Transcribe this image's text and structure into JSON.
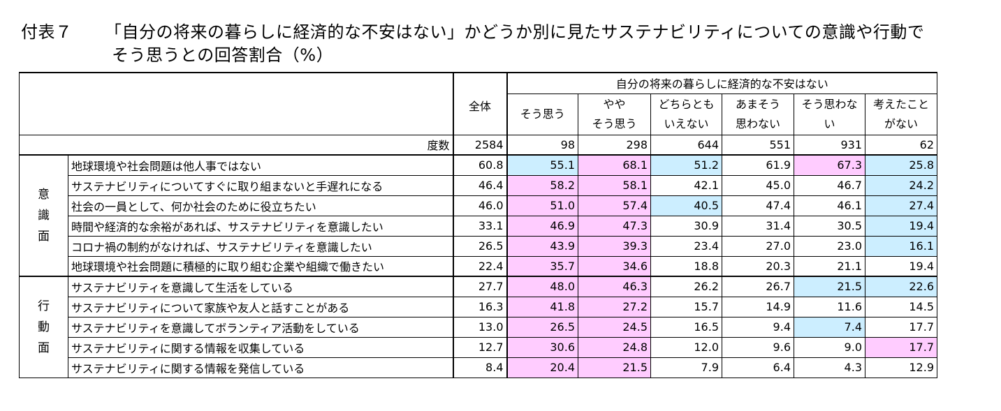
{
  "title": {
    "label": "付表７",
    "line1": "「自分の将来の暮らしに経済的な不安はない」かどうか別に見たサステナビリティについての意識や行動で",
    "line2": "そう思うとの回答割合（%）"
  },
  "header": {
    "total": "全体",
    "group": "自分の将来の暮らしに経済的な不安はない",
    "cols": [
      {
        "l1": "そう思う",
        "l2": ""
      },
      {
        "l1": "やや",
        "l2": "そう思う"
      },
      {
        "l1": "どちらとも",
        "l2": "いえない"
      },
      {
        "l1": "あまそう",
        "l2": "思わない"
      },
      {
        "l1": "そう思わな",
        "l2": "い"
      },
      {
        "l1": "考えたこと",
        "l2": "がない"
      }
    ]
  },
  "count_row": {
    "label": "度数",
    "total": "2584",
    "values": [
      "98",
      "298",
      "644",
      "551",
      "931",
      "62"
    ]
  },
  "sections": [
    {
      "label": [
        "意",
        "識",
        "面"
      ],
      "rows": [
        {
          "item": "地球環境や社会問題は他人事ではない",
          "total": "60.8",
          "values": [
            "55.1",
            "68.1",
            "51.2",
            "61.9",
            "67.3",
            "25.8"
          ],
          "hl": [
            "blue",
            "pink",
            "blue",
            "",
            "pink",
            "blue"
          ]
        },
        {
          "item": "サステナビリティについてすぐに取り組まないと手遅れになる",
          "total": "46.4",
          "values": [
            "58.2",
            "58.1",
            "42.1",
            "45.0",
            "46.7",
            "24.2"
          ],
          "hl": [
            "pink",
            "pink",
            "",
            "",
            "",
            "blue"
          ]
        },
        {
          "item": "社会の一員として、何か社会のために役立ちたい",
          "total": "46.0",
          "values": [
            "51.0",
            "57.4",
            "40.5",
            "47.4",
            "46.1",
            "27.4"
          ],
          "hl": [
            "pink",
            "pink",
            "blue",
            "",
            "",
            "blue"
          ]
        },
        {
          "item": "時間や経済的な余裕があれば、サステナビリティを意識したい",
          "total": "33.1",
          "values": [
            "46.9",
            "47.3",
            "30.9",
            "31.4",
            "30.5",
            "19.4"
          ],
          "hl": [
            "pink",
            "pink",
            "",
            "",
            "",
            "blue"
          ]
        },
        {
          "item": "コロナ禍の制約がなければ、サステナビリティを意識したい",
          "total": "26.5",
          "values": [
            "43.9",
            "39.3",
            "23.4",
            "27.0",
            "23.0",
            "16.1"
          ],
          "hl": [
            "pink",
            "pink",
            "",
            "",
            "",
            "blue"
          ]
        },
        {
          "item": "地球環境や社会問題に積極的に取り組む企業や組織で働きたい",
          "total": "22.4",
          "values": [
            "35.7",
            "34.6",
            "18.8",
            "20.3",
            "21.1",
            "19.4"
          ],
          "hl": [
            "pink",
            "pink",
            "",
            "",
            "",
            ""
          ]
        }
      ]
    },
    {
      "label": [
        "行",
        "動",
        "面"
      ],
      "rows": [
        {
          "item": "サステナビリティを意識して生活をしている",
          "total": "27.7",
          "values": [
            "48.0",
            "46.3",
            "26.2",
            "26.7",
            "21.5",
            "22.6"
          ],
          "hl": [
            "pink",
            "pink",
            "",
            "",
            "blue",
            "blue"
          ]
        },
        {
          "item": "サステナビリティについて家族や友人と話すことがある",
          "total": "16.3",
          "values": [
            "41.8",
            "27.2",
            "15.7",
            "14.9",
            "11.6",
            "14.5"
          ],
          "hl": [
            "pink",
            "pink",
            "",
            "",
            "",
            ""
          ]
        },
        {
          "item": "サステナビリティを意識してボランティア活動をしている",
          "total": "13.0",
          "values": [
            "26.5",
            "24.5",
            "16.5",
            "9.4",
            "7.4",
            "17.7"
          ],
          "hl": [
            "pink",
            "pink",
            "",
            "",
            "blue",
            ""
          ]
        },
        {
          "item": "サステナビリティに関する情報を収集している",
          "total": "12.7",
          "values": [
            "30.6",
            "24.8",
            "12.0",
            "9.6",
            "9.0",
            "17.7"
          ],
          "hl": [
            "pink",
            "pink",
            "",
            "",
            "",
            "pink"
          ]
        },
        {
          "item": "サステナビリティに関する情報を発信している",
          "total": "8.4",
          "values": [
            "20.4",
            "21.5",
            "7.9",
            "6.4",
            "4.3",
            "12.9"
          ],
          "hl": [
            "pink",
            "pink",
            "",
            "",
            "",
            ""
          ]
        }
      ]
    }
  ]
}
